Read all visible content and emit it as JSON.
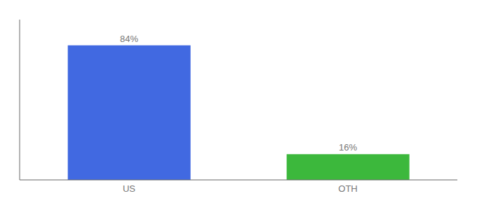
{
  "chart_data": {
    "type": "bar",
    "categories": [
      "US",
      "OTH"
    ],
    "values": [
      84,
      16
    ],
    "value_labels": [
      "84%",
      "16%"
    ],
    "colors": [
      "#4169e1",
      "#3cb83c"
    ],
    "ylim": [
      0,
      100
    ],
    "data_labels": true,
    "tick_labels": "x",
    "grid": false
  }
}
